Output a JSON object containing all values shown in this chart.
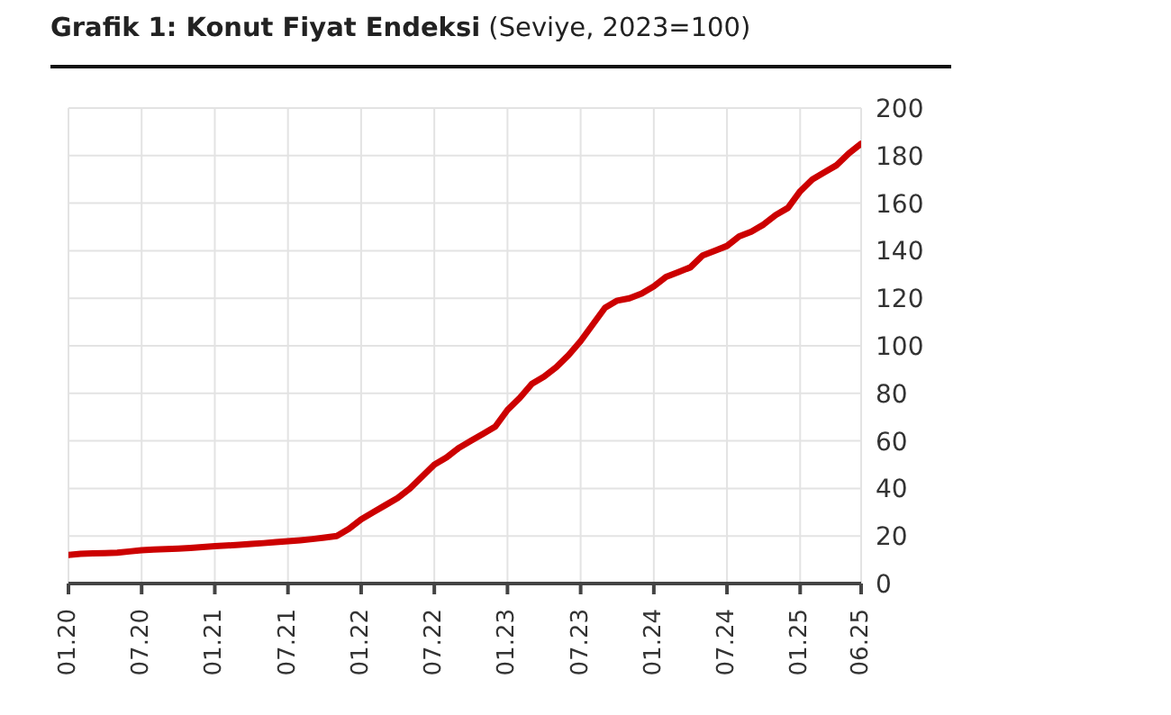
{
  "chart_data": {
    "type": "line",
    "title": "Grafik 1: Konut Fiyat Endeksi",
    "subtitle": "(Seviye, 2023=100)",
    "x": [
      "2020-01",
      "2020-02",
      "2020-03",
      "2020-04",
      "2020-05",
      "2020-06",
      "2020-07",
      "2020-08",
      "2020-09",
      "2020-10",
      "2020-11",
      "2020-12",
      "2021-01",
      "2021-02",
      "2021-03",
      "2021-04",
      "2021-05",
      "2021-06",
      "2021-07",
      "2021-08",
      "2021-09",
      "2021-10",
      "2021-11",
      "2021-12",
      "2022-01",
      "2022-02",
      "2022-03",
      "2022-04",
      "2022-05",
      "2022-06",
      "2022-07",
      "2022-08",
      "2022-09",
      "2022-10",
      "2022-11",
      "2022-12",
      "2023-01",
      "2023-02",
      "2023-03",
      "2023-04",
      "2023-05",
      "2023-06",
      "2023-07",
      "2023-08",
      "2023-09",
      "2023-10",
      "2023-11",
      "2023-12",
      "2024-01",
      "2024-02",
      "2024-03",
      "2024-04",
      "2024-05",
      "2024-06",
      "2024-07",
      "2024-08",
      "2024-09",
      "2024-10",
      "2024-11",
      "2024-12",
      "2025-01",
      "2025-02",
      "2025-03",
      "2025-04",
      "2025-05",
      "2025-06"
    ],
    "series": [
      {
        "color": "#cc0000",
        "values": [
          12,
          12.5,
          12.7,
          12.8,
          13,
          13.5,
          14,
          14.3,
          14.5,
          14.7,
          15,
          15.3,
          15.7,
          16,
          16.3,
          16.7,
          17,
          17.4,
          17.8,
          18.2,
          18.7,
          19.3,
          20,
          23,
          27,
          30,
          33,
          36,
          40,
          45,
          50,
          53,
          57,
          60,
          63,
          66,
          73,
          78,
          84,
          87,
          91,
          96,
          102,
          109,
          116,
          119,
          120,
          122,
          125,
          129,
          131,
          133,
          138,
          140,
          142,
          146,
          148,
          151,
          155,
          158,
          165,
          170,
          173,
          176,
          181,
          185
        ]
      }
    ],
    "xlim": [
      "2020-01",
      "2025-06"
    ],
    "xticks": [
      {
        "value": "2020-01",
        "label": "01.20"
      },
      {
        "value": "2020-07",
        "label": "07.20"
      },
      {
        "value": "2021-01",
        "label": "01.21"
      },
      {
        "value": "2021-07",
        "label": "07.21"
      },
      {
        "value": "2022-01",
        "label": "01.22"
      },
      {
        "value": "2022-07",
        "label": "07.22"
      },
      {
        "value": "2023-01",
        "label": "01.23"
      },
      {
        "value": "2023-07",
        "label": "07.23"
      },
      {
        "value": "2024-01",
        "label": "01.24"
      },
      {
        "value": "2024-07",
        "label": "07.24"
      },
      {
        "value": "2025-01",
        "label": "01.25"
      },
      {
        "value": "2025-06",
        "label": "06.25"
      }
    ],
    "ylim": [
      0,
      200
    ],
    "yticks": [
      0,
      20,
      40,
      60,
      80,
      100,
      120,
      140,
      160,
      180,
      200
    ],
    "grid": true,
    "marker": "none",
    "line_style": "solid"
  }
}
